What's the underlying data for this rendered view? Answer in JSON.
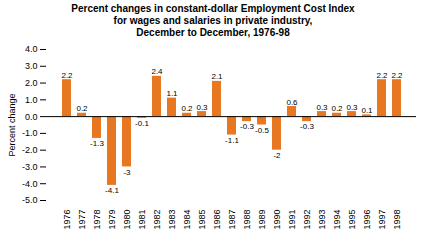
{
  "chart_data": {
    "type": "bar",
    "title": "Percent changes in constant-dollar Employment Cost Index\nfor wages and salaries in private industry,\nDecember to December, 1976-98",
    "ylabel": "Percent change",
    "categories": [
      "1976",
      "1977",
      "1978",
      "1979",
      "1980",
      "1981",
      "1982",
      "1983",
      "1984",
      "1985",
      "1986",
      "1987",
      "1988",
      "1989",
      "1990",
      "1991",
      "1992",
      "1993",
      "1994",
      "1995",
      "1996",
      "1997",
      "1998"
    ],
    "values": [
      2.2,
      0.2,
      -1.3,
      -4.1,
      -3.0,
      -0.1,
      2.4,
      1.1,
      0.2,
      0.3,
      2.1,
      -1.1,
      -0.3,
      -0.5,
      -2.0,
      0.6,
      -0.3,
      0.3,
      0.2,
      0.3,
      0.1,
      2.2,
      2.2
    ],
    "color": "#E87722",
    "ylim": [
      -5.0,
      4.0
    ],
    "yticks": [
      {
        "value": -5.0,
        "label": "-5.0"
      },
      {
        "value": -4.0,
        "label": "-4.0"
      },
      {
        "value": -3.0,
        "label": "-3.0"
      },
      {
        "value": -2.0,
        "label": "-2.0"
      },
      {
        "value": -1.0,
        "label": "-1.0"
      },
      {
        "value": 0.0,
        "label": "0.0"
      },
      {
        "value": 1.0,
        "label": "1.0"
      },
      {
        "value": 2.0,
        "label": "2.0"
      },
      {
        "value": 3.0,
        "label": "3.0"
      },
      {
        "value": 4.0,
        "label": "4.0"
      }
    ],
    "data_labels": true,
    "grid": false
  }
}
